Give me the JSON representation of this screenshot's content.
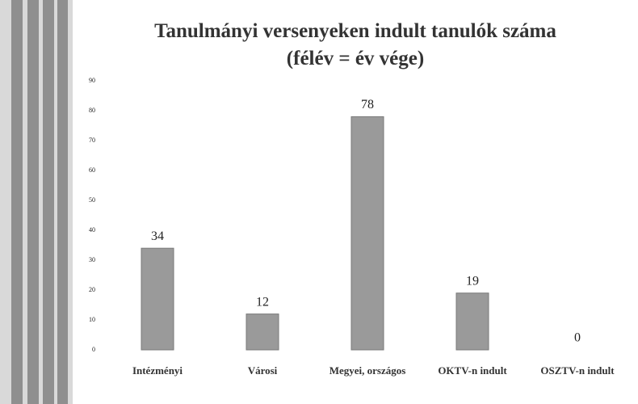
{
  "chart_data": {
    "type": "bar",
    "title": "Tanulmányi versenyeken indult tanulók száma (félév = év vége)",
    "categories": [
      "Intézményi",
      "Városi",
      "Megyei, országos",
      "OKTV-n indult",
      "OSZTV-n indult"
    ],
    "values": [
      34,
      12,
      78,
      19,
      0
    ],
    "color": "#9a9a9a",
    "ylim": [
      0,
      90
    ],
    "yticks": [
      0,
      10,
      20,
      30,
      40,
      50,
      60,
      70,
      80,
      90
    ],
    "grid": false
  }
}
